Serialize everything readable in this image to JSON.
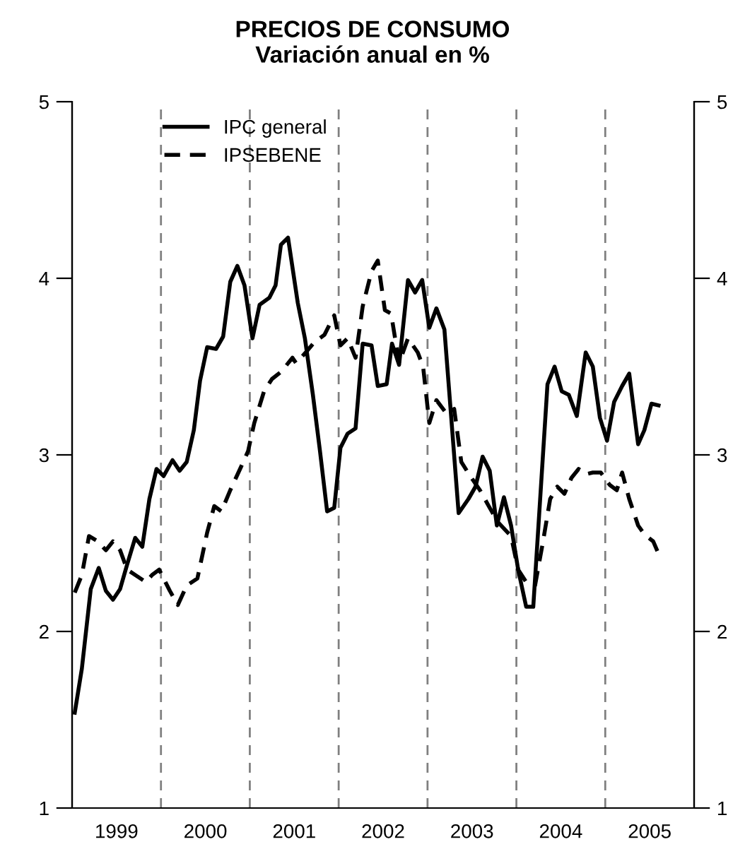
{
  "chart_data": {
    "type": "line",
    "title": "PRECIOS DE CONSUMO",
    "subtitle": "Variación anual en %",
    "xlim": [
      1999,
      2006
    ],
    "xticks": [
      {
        "value": 1999.5,
        "label": "1999"
      },
      {
        "value": 2000.5,
        "label": "2000"
      },
      {
        "value": 2001.5,
        "label": "2001"
      },
      {
        "value": 2002.5,
        "label": "2002"
      },
      {
        "value": 2003.5,
        "label": "2003"
      },
      {
        "value": 2004.5,
        "label": "2004"
      },
      {
        "value": 2005.5,
        "label": "2005"
      }
    ],
    "ylim": [
      1,
      5
    ],
    "yticks": [
      1,
      2,
      3,
      4,
      5
    ],
    "y2lim": [
      1,
      5
    ],
    "y2ticks": [
      1,
      2,
      3,
      4,
      5
    ],
    "grid": false,
    "legend": "top left",
    "ref_lines": [
      {
        "axis": "x",
        "value": 2000,
        "color": "#808080",
        "line_style": "dashed"
      },
      {
        "axis": "x",
        "value": 2001,
        "color": "#808080",
        "line_style": "dashed"
      },
      {
        "axis": "x",
        "value": 2002,
        "color": "#808080",
        "line_style": "dashed"
      },
      {
        "axis": "x",
        "value": 2003,
        "color": "#808080",
        "line_style": "dashed"
      },
      {
        "axis": "x",
        "value": 2004,
        "color": "#808080",
        "line_style": "dashed"
      },
      {
        "axis": "x",
        "value": 2005,
        "color": "#808080",
        "line_style": "dashed"
      }
    ],
    "series": [
      {
        "name": "IPC general",
        "color": "#000000",
        "line_style": "solid",
        "x": [
          1999.03,
          1999.11,
          1999.21,
          1999.3,
          1999.38,
          1999.46,
          1999.54,
          1999.62,
          1999.71,
          1999.79,
          1999.87,
          1999.95,
          2000.03,
          2000.13,
          2000.21,
          2000.29,
          2000.37,
          2000.44,
          2000.52,
          2000.62,
          2000.7,
          2000.78,
          2000.86,
          2000.94,
          2001.03,
          2001.11,
          2001.22,
          2001.29,
          2001.35,
          2001.43,
          2001.54,
          2001.62,
          2001.71,
          2001.79,
          2001.87,
          2001.95,
          2002.02,
          2002.1,
          2002.19,
          2002.27,
          2002.37,
          2002.44,
          2002.54,
          2002.6,
          2002.68,
          2002.78,
          2002.86,
          2002.94,
          2003.02,
          2003.1,
          2003.19,
          2003.35,
          2003.46,
          2003.54,
          2003.62,
          2003.7,
          2003.78,
          2003.86,
          2003.94,
          2004.02,
          2004.11,
          2004.19,
          2004.35,
          2004.43,
          2004.51,
          2004.59,
          2004.68,
          2004.78,
          2004.86,
          2004.94,
          2005.02,
          2005.1,
          2005.19,
          2005.27,
          2005.37,
          2005.44,
          2005.52,
          2005.6
        ],
        "values": [
          1.54,
          1.79,
          2.24,
          2.36,
          2.23,
          2.18,
          2.24,
          2.38,
          2.53,
          2.48,
          2.75,
          2.92,
          2.88,
          2.97,
          2.91,
          2.96,
          3.14,
          3.42,
          3.61,
          3.6,
          3.67,
          3.98,
          4.07,
          3.96,
          3.66,
          3.85,
          3.89,
          3.96,
          4.19,
          4.23,
          3.86,
          3.66,
          3.34,
          3.02,
          2.68,
          2.7,
          3.04,
          3.12,
          3.15,
          3.63,
          3.62,
          3.39,
          3.4,
          3.63,
          3.51,
          3.99,
          3.92,
          3.99,
          3.72,
          3.83,
          3.71,
          2.67,
          2.75,
          2.82,
          2.99,
          2.91,
          2.6,
          2.76,
          2.6,
          2.35,
          2.14,
          2.14,
          3.4,
          3.5,
          3.36,
          3.34,
          3.22,
          3.58,
          3.5,
          3.21,
          3.08,
          3.3,
          3.39,
          3.46,
          3.06,
          3.14,
          3.29,
          3.28
        ]
      },
      {
        "name": "IPSEBENE",
        "color": "#000000",
        "line_style": "dashed",
        "x": [
          1999.03,
          1999.11,
          1999.19,
          1999.29,
          1999.38,
          1999.46,
          1999.54,
          1999.62,
          1999.71,
          1999.83,
          1999.9,
          1999.98,
          2000.1,
          2000.19,
          2000.29,
          2000.41,
          2000.52,
          2000.6,
          2000.68,
          2000.78,
          2000.89,
          2000.98,
          2001.05,
          2001.16,
          2001.25,
          2001.35,
          2001.4,
          2001.48,
          2001.52,
          2001.63,
          2001.73,
          2001.84,
          2001.95,
          2002.02,
          2002.1,
          2002.19,
          2002.27,
          2002.37,
          2002.44,
          2002.52,
          2002.59,
          2002.68,
          2002.78,
          2002.89,
          2002.95,
          2003.02,
          2003.1,
          2003.22,
          2003.3,
          2003.38,
          2003.48,
          2003.59,
          2003.7,
          2003.79,
          2003.94,
          2004.02,
          2004.11,
          2004.21,
          2004.3,
          2004.38,
          2004.46,
          2004.54,
          2004.62,
          2004.7,
          2004.78,
          2004.86,
          2004.95,
          2005.05,
          2005.13,
          2005.19,
          2005.27,
          2005.37,
          2005.44,
          2005.54,
          2005.6
        ],
        "values": [
          2.22,
          2.32,
          2.54,
          2.51,
          2.46,
          2.51,
          2.46,
          2.35,
          2.32,
          2.28,
          2.32,
          2.35,
          2.23,
          2.15,
          2.26,
          2.3,
          2.56,
          2.71,
          2.68,
          2.8,
          2.92,
          3.02,
          3.18,
          3.36,
          3.43,
          3.47,
          3.5,
          3.55,
          3.52,
          3.58,
          3.64,
          3.68,
          3.79,
          3.62,
          3.66,
          3.55,
          3.84,
          4.04,
          4.1,
          3.82,
          3.8,
          3.52,
          3.66,
          3.58,
          3.5,
          3.18,
          3.31,
          3.23,
          3.26,
          2.96,
          2.88,
          2.8,
          2.7,
          2.62,
          2.54,
          2.35,
          2.28,
          2.26,
          2.51,
          2.75,
          2.82,
          2.78,
          2.87,
          2.92,
          2.89,
          2.9,
          2.9,
          2.83,
          2.8,
          2.9,
          2.75,
          2.6,
          2.55,
          2.51,
          2.44
        ]
      }
    ]
  }
}
